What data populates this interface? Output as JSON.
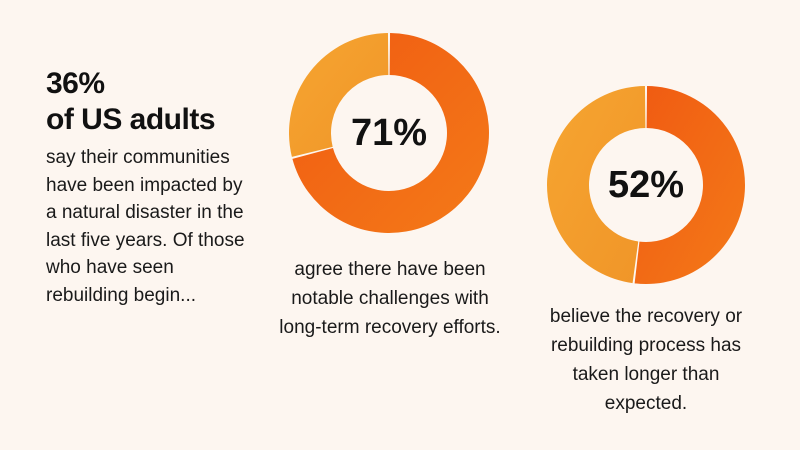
{
  "intro": {
    "stat": "36%",
    "stat_subject": "of US adults",
    "text": "say their communities have been impacted by a natural disaster in the last five years. Of those who have seen rebuilding begin..."
  },
  "colors": {
    "background": "#fdf6f0",
    "arc_light_start": "#f6a531",
    "arc_light_end": "#f09528",
    "arc_dark_start": "#f05a12",
    "arc_dark_end": "#f47a18",
    "text": "#111111"
  },
  "chart_data": [
    {
      "type": "pie",
      "variant": "donut",
      "values": [
        71,
        29
      ],
      "center_label": "71%",
      "caption": "agree there have been notable challenges with long-term recovery efforts."
    },
    {
      "type": "pie",
      "variant": "donut",
      "values": [
        52,
        48
      ],
      "center_label": "52%",
      "caption": "believe the recovery or rebuilding process has taken longer than expected."
    }
  ]
}
